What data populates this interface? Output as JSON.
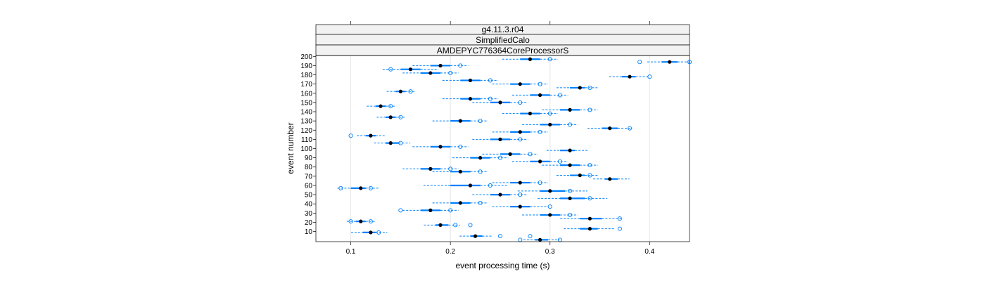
{
  "chart_data": {
    "type": "scatter",
    "strips": [
      "g4.11.3.r04",
      "SimplifiedCalo",
      "AMDEPYC776364CoreProcessorS"
    ],
    "xlabel": "event processing time (s)",
    "ylabel": "event number",
    "xlim": [
      0.065,
      0.44
    ],
    "ylim": [
      -1,
      201
    ],
    "x_ticks": [
      0.1,
      0.2,
      0.3,
      0.4
    ],
    "x_tick_labels": [
      "0.1",
      "0.2",
      "0.3",
      "0.4"
    ],
    "y_ticks": [
      10,
      20,
      30,
      40,
      50,
      60,
      70,
      80,
      90,
      100,
      110,
      120,
      130,
      140,
      150,
      160,
      170,
      180,
      190,
      200
    ],
    "y_tick_labels": [
      "10",
      "20",
      "30",
      "40",
      "50",
      "60",
      "70",
      "80",
      "90",
      "100",
      "110",
      "120",
      "130",
      "140",
      "150",
      "160",
      "170",
      "180",
      "190",
      "200"
    ],
    "grid": "vertical",
    "colors": {
      "median": "#000000",
      "box": "#0080ff",
      "whisker": "#0080ff",
      "outlier": "#0080ff",
      "strip_bg": "#f2f2f2",
      "grid": "#e6e6e6"
    },
    "events": [
      {
        "event": 1,
        "median": 0.29,
        "q1": 0.285,
        "q3": 0.298,
        "outliers": [
          0.27,
          0.31
        ]
      },
      {
        "event": 5,
        "median": 0.225,
        "q1": 0.22,
        "q3": 0.232,
        "outliers": [
          0.25,
          0.28
        ]
      },
      {
        "event": 9,
        "median": 0.12,
        "q1": 0.112,
        "q3": 0.125,
        "outliers": [
          0.128
        ]
      },
      {
        "event": 13,
        "median": 0.34,
        "q1": 0.33,
        "q3": 0.348,
        "outliers": [
          0.37
        ]
      },
      {
        "event": 17,
        "median": 0.19,
        "q1": 0.185,
        "q3": 0.198,
        "outliers": [
          0.205,
          0.22
        ]
      },
      {
        "event": 21,
        "median": 0.11,
        "q1": 0.105,
        "q3": 0.115,
        "outliers": [
          0.1,
          0.12
        ]
      },
      {
        "event": 24,
        "median": 0.34,
        "q1": 0.33,
        "q3": 0.352,
        "outliers": [
          0.37
        ]
      },
      {
        "event": 28,
        "median": 0.3,
        "q1": 0.29,
        "q3": 0.31,
        "outliers": [
          0.32
        ]
      },
      {
        "event": 33,
        "median": 0.18,
        "q1": 0.17,
        "q3": 0.19,
        "outliers": [
          0.15,
          0.2
        ]
      },
      {
        "event": 37,
        "median": 0.27,
        "q1": 0.26,
        "q3": 0.28,
        "outliers": [
          0.3
        ]
      },
      {
        "event": 41,
        "median": 0.21,
        "q1": 0.2,
        "q3": 0.22,
        "outliers": [
          0.23
        ]
      },
      {
        "event": 46,
        "median": 0.32,
        "q1": 0.31,
        "q3": 0.335,
        "outliers": [
          0.34
        ]
      },
      {
        "event": 50,
        "median": 0.25,
        "q1": 0.24,
        "q3": 0.26,
        "outliers": [
          0.27
        ]
      },
      {
        "event": 54,
        "median": 0.3,
        "q1": 0.29,
        "q3": 0.315,
        "outliers": [
          0.32
        ]
      },
      {
        "event": 57,
        "median": 0.11,
        "q1": 0.1,
        "q3": 0.115,
        "outliers": [
          0.09,
          0.12
        ]
      },
      {
        "event": 60,
        "median": 0.22,
        "q1": 0.2,
        "q3": 0.23,
        "outliers": [
          0.24
        ]
      },
      {
        "event": 63,
        "median": 0.27,
        "q1": 0.26,
        "q3": 0.28,
        "outliers": [
          0.29
        ]
      },
      {
        "event": 67,
        "median": 0.36,
        "q1": 0.355,
        "q3": 0.368,
        "outliers": []
      },
      {
        "event": 71,
        "median": 0.33,
        "q1": 0.32,
        "q3": 0.335,
        "outliers": [
          0.34
        ]
      },
      {
        "event": 75,
        "median": 0.21,
        "q1": 0.2,
        "q3": 0.22,
        "outliers": [
          0.23
        ]
      },
      {
        "event": 78,
        "median": 0.18,
        "q1": 0.17,
        "q3": 0.19,
        "outliers": [
          0.2
        ]
      },
      {
        "event": 82,
        "median": 0.32,
        "q1": 0.31,
        "q3": 0.33,
        "outliers": [
          0.34
        ]
      },
      {
        "event": 86,
        "median": 0.29,
        "q1": 0.28,
        "q3": 0.3,
        "outliers": [
          0.31
        ]
      },
      {
        "event": 90,
        "median": 0.23,
        "q1": 0.22,
        "q3": 0.24,
        "outliers": [
          0.25
        ]
      },
      {
        "event": 94,
        "median": 0.26,
        "q1": 0.25,
        "q3": 0.27,
        "outliers": [
          0.28
        ]
      },
      {
        "event": 98,
        "median": 0.32,
        "q1": 0.31,
        "q3": 0.325,
        "outliers": []
      },
      {
        "event": 102,
        "median": 0.19,
        "q1": 0.18,
        "q3": 0.2,
        "outliers": [
          0.21
        ]
      },
      {
        "event": 106,
        "median": 0.14,
        "q1": 0.135,
        "q3": 0.148,
        "outliers": [
          0.15
        ]
      },
      {
        "event": 110,
        "median": 0.25,
        "q1": 0.24,
        "q3": 0.26,
        "outliers": [
          0.27
        ]
      },
      {
        "event": 114,
        "median": 0.12,
        "q1": 0.115,
        "q3": 0.125,
        "outliers": [
          0.1
        ]
      },
      {
        "event": 118,
        "median": 0.27,
        "q1": 0.26,
        "q3": 0.28,
        "outliers": [
          0.29
        ]
      },
      {
        "event": 122,
        "median": 0.36,
        "q1": 0.352,
        "q3": 0.368,
        "outliers": [
          0.38
        ]
      },
      {
        "event": 126,
        "median": 0.3,
        "q1": 0.29,
        "q3": 0.31,
        "outliers": [
          0.32
        ]
      },
      {
        "event": 130,
        "median": 0.21,
        "q1": 0.2,
        "q3": 0.22,
        "outliers": [
          0.23
        ]
      },
      {
        "event": 134,
        "median": 0.14,
        "q1": 0.135,
        "q3": 0.145,
        "outliers": [
          0.15
        ]
      },
      {
        "event": 138,
        "median": 0.28,
        "q1": 0.27,
        "q3": 0.29,
        "outliers": [
          0.3
        ]
      },
      {
        "event": 142,
        "median": 0.32,
        "q1": 0.31,
        "q3": 0.33,
        "outliers": [
          0.34
        ]
      },
      {
        "event": 146,
        "median": 0.13,
        "q1": 0.125,
        "q3": 0.135,
        "outliers": [
          0.14
        ]
      },
      {
        "event": 150,
        "median": 0.25,
        "q1": 0.24,
        "q3": 0.26,
        "outliers": [
          0.27
        ]
      },
      {
        "event": 154,
        "median": 0.22,
        "q1": 0.21,
        "q3": 0.23,
        "outliers": [
          0.24
        ]
      },
      {
        "event": 158,
        "median": 0.29,
        "q1": 0.28,
        "q3": 0.3,
        "outliers": [
          0.31
        ]
      },
      {
        "event": 162,
        "median": 0.15,
        "q1": 0.145,
        "q3": 0.155,
        "outliers": [
          0.16
        ]
      },
      {
        "event": 166,
        "median": 0.33,
        "q1": 0.32,
        "q3": 0.335,
        "outliers": [
          0.34
        ]
      },
      {
        "event": 170,
        "median": 0.27,
        "q1": 0.26,
        "q3": 0.28,
        "outliers": [
          0.29
        ]
      },
      {
        "event": 174,
        "median": 0.22,
        "q1": 0.21,
        "q3": 0.23,
        "outliers": [
          0.24
        ]
      },
      {
        "event": 178,
        "median": 0.38,
        "q1": 0.372,
        "q3": 0.386,
        "outliers": [
          0.4
        ]
      },
      {
        "event": 182,
        "median": 0.18,
        "q1": 0.17,
        "q3": 0.19,
        "outliers": [
          0.2
        ]
      },
      {
        "event": 186,
        "median": 0.16,
        "q1": 0.15,
        "q3": 0.17,
        "outliers": [
          0.14
        ]
      },
      {
        "event": 190,
        "median": 0.19,
        "q1": 0.18,
        "q3": 0.2,
        "outliers": [
          0.21
        ]
      },
      {
        "event": 194,
        "median": 0.42,
        "q1": 0.412,
        "q3": 0.428,
        "outliers": [
          0.39,
          0.44
        ]
      },
      {
        "event": 197,
        "median": 0.28,
        "q1": 0.27,
        "q3": 0.29,
        "outliers": [
          0.3
        ]
      }
    ]
  }
}
